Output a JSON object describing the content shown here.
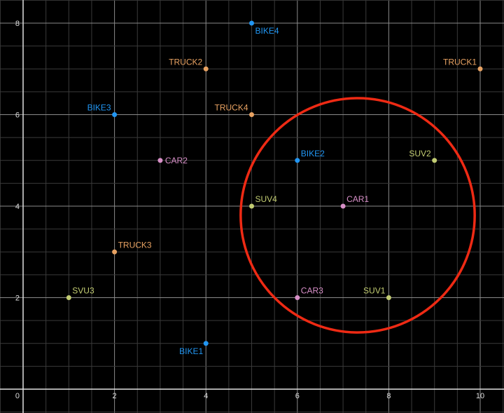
{
  "chart_data": {
    "type": "scatter",
    "title": "",
    "xlabel": "",
    "ylabel": "",
    "xlim": [
      -0.5,
      10.5
    ],
    "ylim": [
      -0.5,
      8.5
    ],
    "grid": true,
    "x_ticks": [
      0,
      2,
      4,
      6,
      8,
      10
    ],
    "y_ticks": [
      2,
      4,
      6,
      8
    ],
    "colors": {
      "bike": "#2196f3",
      "truck": "#e8a262",
      "car": "#d890c8",
      "suv": "#c2cc72",
      "circle": "#ee2a14",
      "background": "#000000"
    },
    "points": [
      {
        "label": "BIKE1",
        "x": 4,
        "y": 1,
        "group": "bike",
        "pos": "bl"
      },
      {
        "label": "BIKE2",
        "x": 6,
        "y": 5,
        "group": "bike",
        "pos": "tr"
      },
      {
        "label": "BIKE3",
        "x": 2,
        "y": 6,
        "group": "bike",
        "pos": "tl"
      },
      {
        "label": "BIKE4",
        "x": 5,
        "y": 8,
        "group": "bike",
        "pos": "br"
      },
      {
        "label": "TRUCK1",
        "x": 10,
        "y": 7,
        "group": "truck",
        "pos": "tl"
      },
      {
        "label": "TRUCK2",
        "x": 4,
        "y": 7,
        "group": "truck",
        "pos": "tl"
      },
      {
        "label": "TRUCK3",
        "x": 2,
        "y": 3,
        "group": "truck",
        "pos": "tr"
      },
      {
        "label": "TRUCK4",
        "x": 5,
        "y": 6,
        "group": "truck",
        "pos": "tl"
      },
      {
        "label": "CAR1",
        "x": 7,
        "y": 4,
        "group": "car",
        "pos": "tr"
      },
      {
        "label": "CAR2",
        "x": 3,
        "y": 5,
        "group": "car",
        "pos": "r"
      },
      {
        "label": "CAR3",
        "x": 6,
        "y": 2,
        "group": "car",
        "pos": "tr"
      },
      {
        "label": "SUV1",
        "x": 8,
        "y": 2,
        "group": "suv",
        "pos": "tl"
      },
      {
        "label": "SUV2",
        "x": 9,
        "y": 5,
        "group": "suv",
        "pos": "tl"
      },
      {
        "label": "SVU3",
        "x": 1,
        "y": 2,
        "group": "suv",
        "pos": "tr"
      },
      {
        "label": "SUV4",
        "x": 5,
        "y": 4,
        "group": "suv",
        "pos": "tr"
      }
    ],
    "circle": {
      "cx": 7.32,
      "cy": 3.8,
      "r": 2.56
    }
  }
}
